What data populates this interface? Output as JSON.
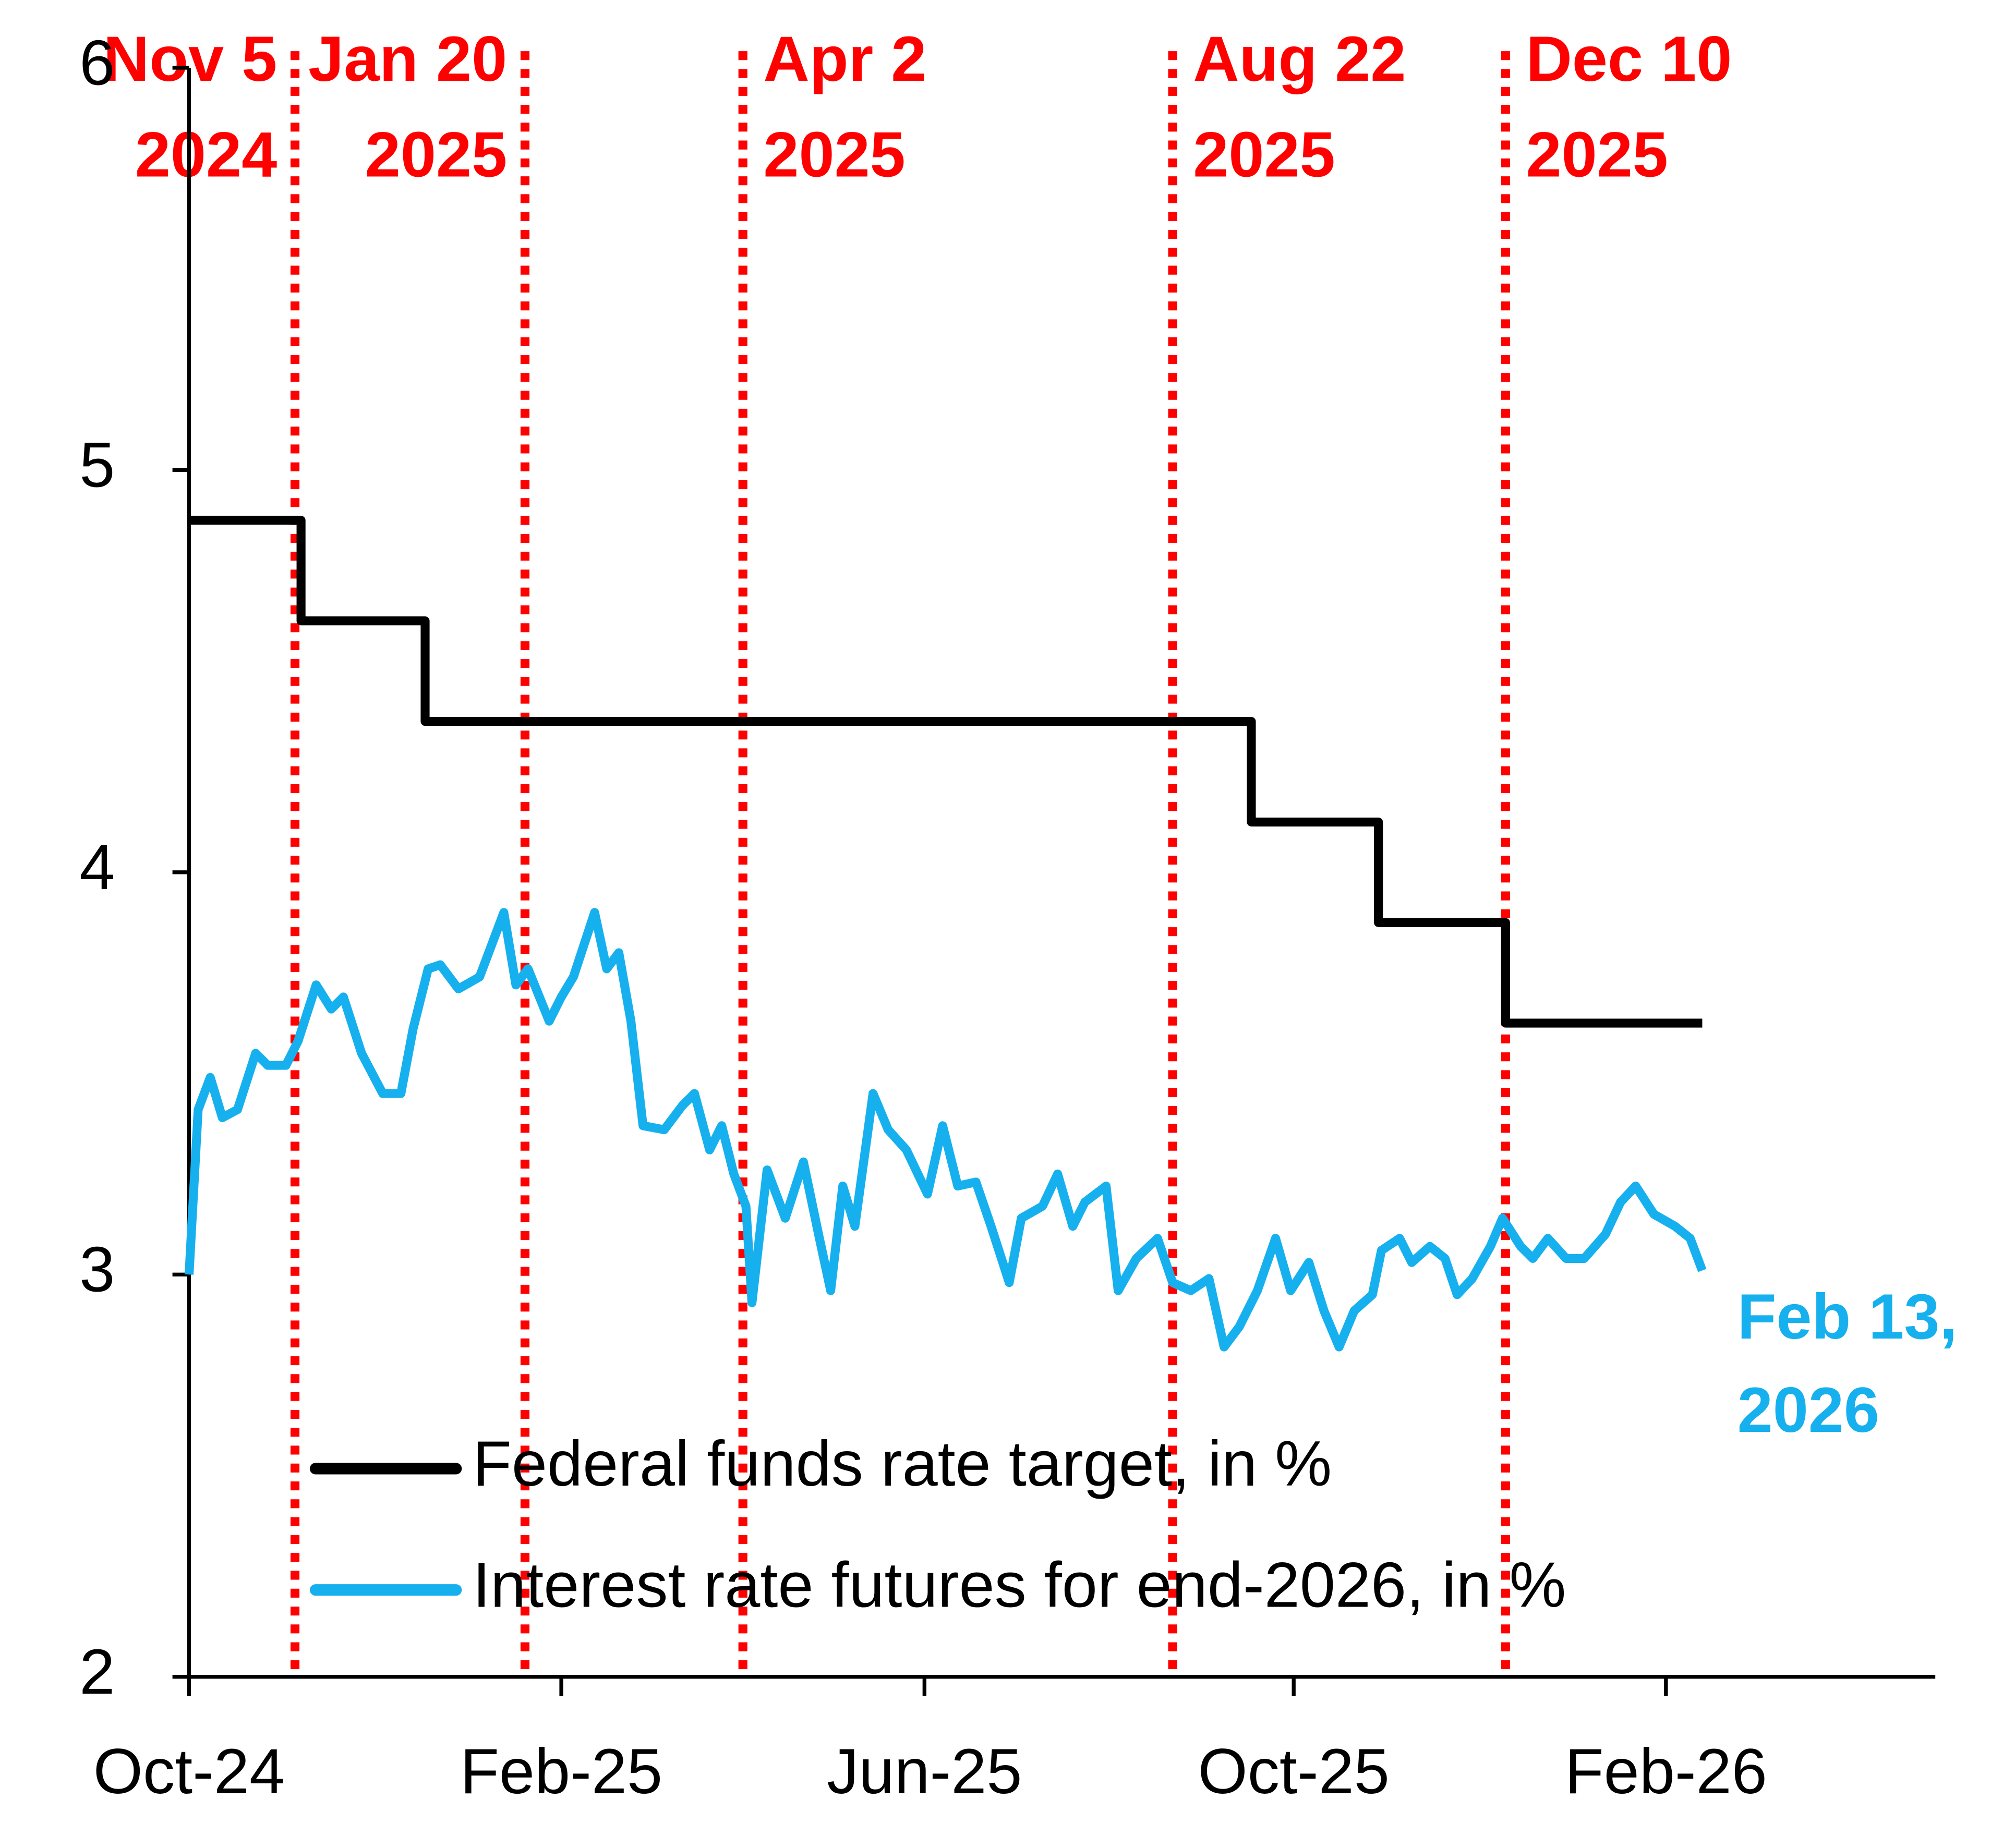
{
  "chart_data": {
    "type": "line",
    "xlim": [
      "2024-10-01",
      "2026-05-01"
    ],
    "xticks": [
      {
        "value": "2024-10-01",
        "label": "Oct-24"
      },
      {
        "value": "2025-02-01",
        "label": "Feb-25"
      },
      {
        "value": "2025-06-01",
        "label": "Jun-25"
      },
      {
        "value": "2025-10-01",
        "label": "Oct-25"
      },
      {
        "value": "2026-02-01",
        "label": "Feb-26"
      }
    ],
    "ylim": [
      2,
      6
    ],
    "yticks": [
      2,
      3,
      4,
      5,
      6
    ],
    "grid": false,
    "legend": "bottom",
    "series": [
      {
        "name": "Federal funds rate target, in %",
        "color": "#000000",
        "x": [
          "2024-10-01",
          "2024-11-07",
          "2024-11-07",
          "2024-12-18",
          "2024-12-18",
          "2025-09-17",
          "2025-09-17",
          "2025-10-29",
          "2025-10-29",
          "2025-12-10",
          "2025-12-10",
          "2026-02-13"
        ],
        "values": [
          4.875,
          4.875,
          4.625,
          4.625,
          4.375,
          4.375,
          4.125,
          4.125,
          3.875,
          3.875,
          3.625,
          3.625
        ]
      },
      {
        "name": "Interest rate futures for end-2026, in %",
        "color": "#17b0ee",
        "x": [
          "2024-10-01",
          "2024-10-04",
          "2024-10-08",
          "2024-10-12",
          "2024-10-17",
          "2024-10-23",
          "2024-10-27",
          "2024-11-02",
          "2024-11-06",
          "2024-11-12",
          "2024-11-17",
          "2024-11-21",
          "2024-11-27",
          "2024-12-04",
          "2024-12-10",
          "2024-12-14",
          "2024-12-19",
          "2024-12-23",
          "2024-12-29",
          "2025-01-05",
          "2025-01-09",
          "2025-01-13",
          "2025-01-17",
          "2025-01-21",
          "2025-01-28",
          "2025-02-01",
          "2025-02-05",
          "2025-02-12",
          "2025-02-16",
          "2025-02-20",
          "2025-02-24",
          "2025-02-28",
          "2025-03-07",
          "2025-03-13",
          "2025-03-17",
          "2025-03-22",
          "2025-03-26",
          "2025-03-30",
          "2025-04-03",
          "2025-04-05",
          "2025-04-10",
          "2025-04-16",
          "2025-04-22",
          "2025-04-27",
          "2025-05-01",
          "2025-05-05",
          "2025-05-09",
          "2025-05-15",
          "2025-05-20",
          "2025-05-26",
          "2025-06-02",
          "2025-06-07",
          "2025-06-12",
          "2025-06-18",
          "2025-06-23",
          "2025-06-29",
          "2025-07-03",
          "2025-07-10",
          "2025-07-15",
          "2025-07-20",
          "2025-07-24",
          "2025-07-31",
          "2025-08-04",
          "2025-08-10",
          "2025-08-17",
          "2025-08-22",
          "2025-08-28",
          "2025-09-03",
          "2025-09-08",
          "2025-09-13",
          "2025-09-19",
          "2025-09-25",
          "2025-09-30",
          "2025-10-06",
          "2025-10-11",
          "2025-10-16",
          "2025-10-21",
          "2025-10-27",
          "2025-10-30",
          "2025-11-05",
          "2025-11-09",
          "2025-11-15",
          "2025-11-20",
          "2025-11-24",
          "2025-11-29",
          "2025-12-05",
          "2025-12-09",
          "2025-12-15",
          "2025-12-19",
          "2025-12-24",
          "2025-12-30",
          "2026-01-05",
          "2026-01-12",
          "2026-01-17",
          "2026-01-22",
          "2026-01-28",
          "2026-02-04",
          "2026-02-09",
          "2026-02-13"
        ],
        "values": [
          3.0,
          3.41,
          3.49,
          3.39,
          3.41,
          3.55,
          3.52,
          3.52,
          3.58,
          3.72,
          3.66,
          3.69,
          3.55,
          3.45,
          3.45,
          3.61,
          3.76,
          3.77,
          3.71,
          3.74,
          3.82,
          3.9,
          3.72,
          3.76,
          3.63,
          3.69,
          3.74,
          3.9,
          3.76,
          3.8,
          3.63,
          3.37,
          3.36,
          3.42,
          3.45,
          3.31,
          3.37,
          3.25,
          3.17,
          2.93,
          3.26,
          3.14,
          3.28,
          3.1,
          2.96,
          3.22,
          3.12,
          3.45,
          3.36,
          3.31,
          3.2,
          3.37,
          3.22,
          3.23,
          3.12,
          2.98,
          3.14,
          3.17,
          3.25,
          3.12,
          3.18,
          3.22,
          2.96,
          3.04,
          3.09,
          2.98,
          2.96,
          2.99,
          2.82,
          2.87,
          2.96,
          3.09,
          2.96,
          3.03,
          2.91,
          2.82,
          2.91,
          2.95,
          3.06,
          3.09,
          3.03,
          3.07,
          3.04,
          2.95,
          2.99,
          3.07,
          3.14,
          3.07,
          3.04,
          3.09,
          3.04,
          3.04,
          3.1,
          3.18,
          3.22,
          3.15,
          3.12,
          3.09,
          3.01
        ]
      }
    ],
    "annotations": [
      {
        "x": "2024-11-05",
        "lines": [
          "Nov 5",
          "2024"
        ],
        "color": "#ff0000"
      },
      {
        "x": "2025-01-20",
        "lines": [
          "Jan 20",
          "2025"
        ],
        "color": "#ff0000"
      },
      {
        "x": "2025-04-02",
        "lines": [
          "Apr 2",
          "2025"
        ],
        "color": "#ff0000"
      },
      {
        "x": "2025-08-22",
        "lines": [
          "Aug 22",
          "2025"
        ],
        "color": "#ff0000"
      },
      {
        "x": "2025-12-10",
        "lines": [
          "Dec 10",
          "2025"
        ],
        "color": "#ff0000"
      }
    ],
    "end_label": {
      "lines": [
        "Feb 13,",
        "2026"
      ],
      "color": "#17b0ee"
    }
  }
}
